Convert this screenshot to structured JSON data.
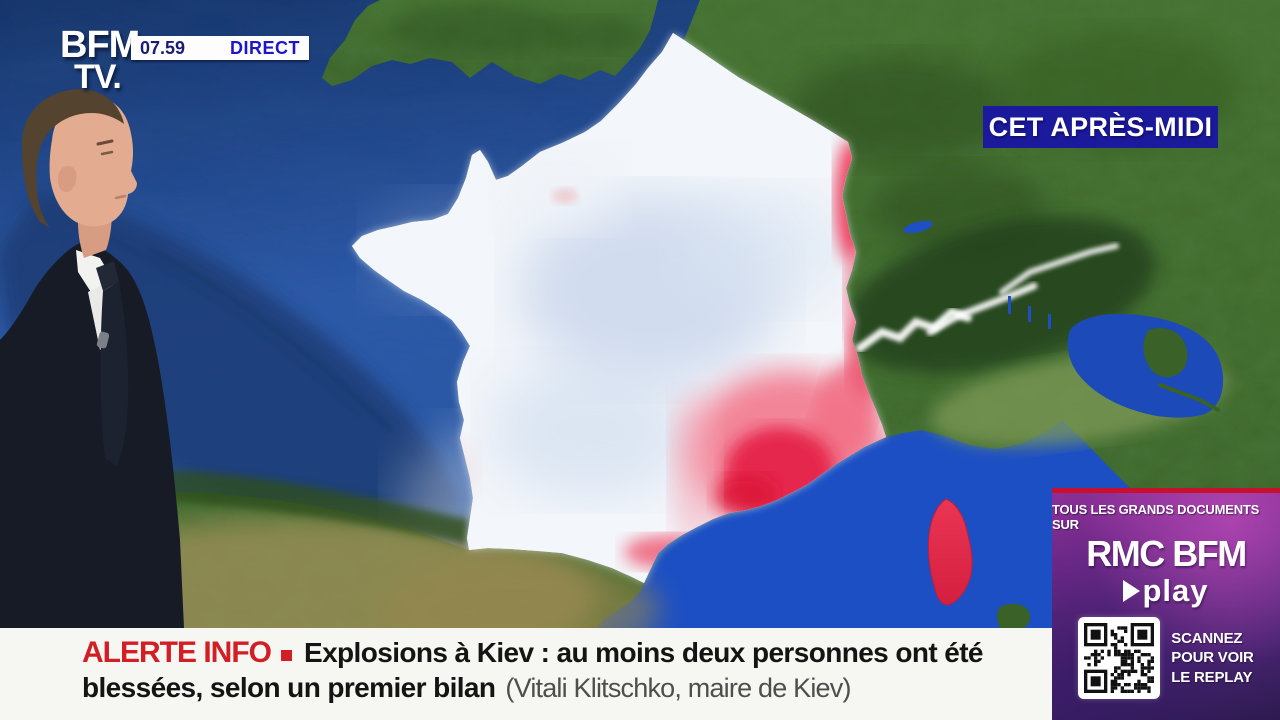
{
  "channel": {
    "logo_top": "BFM",
    "logo_bottom": "TV.",
    "time": "07.59",
    "live_badge": "DIRECT"
  },
  "weather": {
    "period_label": "CET APRÈS-MIDI",
    "map_subject": "France",
    "overlay_zones": {
      "mild_white_blue": "centre et ouest de la France",
      "warm_red": "frontière est, vallée du Rhône, sud-est, Pyrénées orientales",
      "corsica": "rouge"
    }
  },
  "promo": {
    "tagline": "TOUS LES GRANDS DOCUMENTS SUR",
    "brand": "RMC BFM",
    "play_label": "play",
    "scan_line1": "SCANNEZ",
    "scan_line2": "POUR VOIR",
    "scan_line3": "LE REPLAY"
  },
  "ticker": {
    "alert_label": "ALERTE INFO",
    "headline_line1": "Explosions à Kiev : au moins deux personnes ont été",
    "headline_line2": "blessées, selon un premier bilan",
    "attribution": "(Vitali Klitschko, maire de Kiev)"
  },
  "colors": {
    "alert_red": "#d21e25",
    "direct_blue": "#1d15c8",
    "badge_blue": "#1b199c",
    "promo_purple": "#6f2b8b",
    "promo_red_strip": "#c8102e",
    "sea_blue": "#2a57a8",
    "mediterranean_blue": "#1d50c4",
    "warm_zone_red": "#e41f44",
    "overlay_white": "#f3f6fa"
  }
}
